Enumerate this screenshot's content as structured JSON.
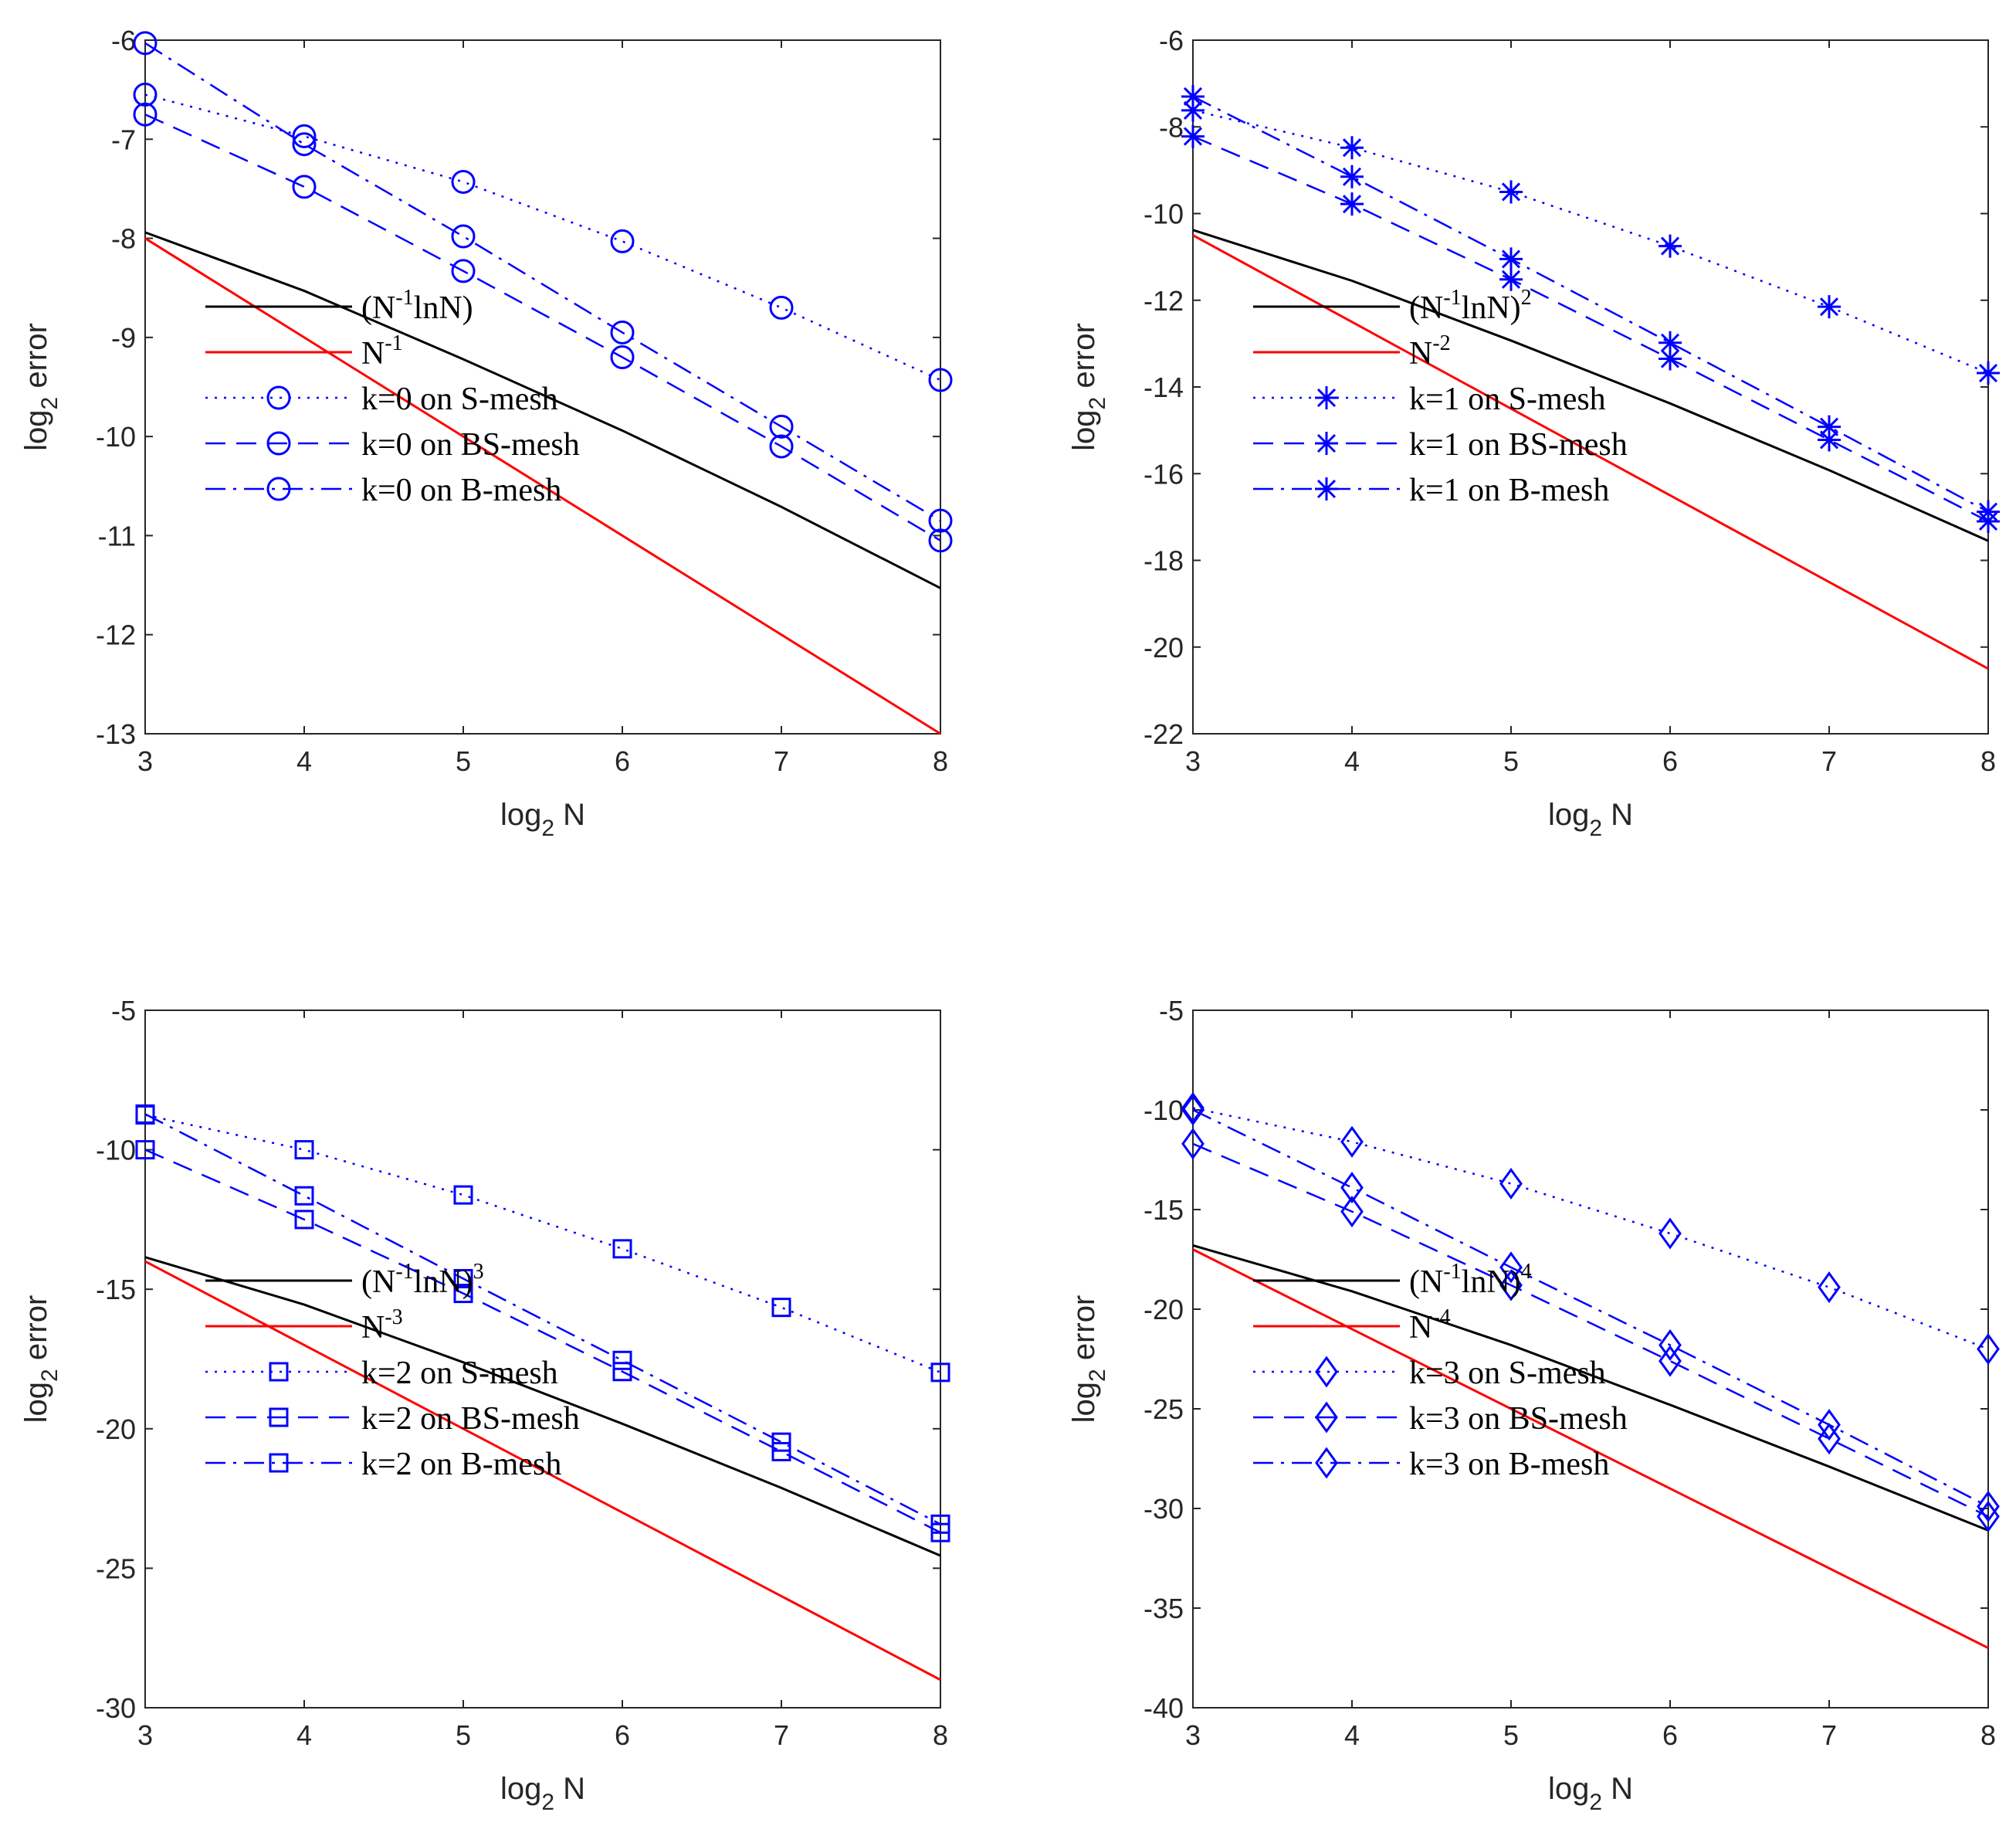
{
  "chart_data": [
    {
      "type": "line",
      "xlabel": "log2 N",
      "ylabel": "log2 error",
      "xlim": [
        3,
        8
      ],
      "ylim": [
        -13,
        -6
      ],
      "xticks": [
        3,
        4,
        5,
        6,
        7,
        8
      ],
      "yticks": [
        -6,
        -7,
        -8,
        -9,
        -10,
        -11,
        -12,
        -13
      ],
      "grid": false,
      "legend_position": "bottom-left",
      "x": [
        3,
        4,
        5,
        6,
        7,
        8
      ],
      "series": [
        {
          "name": "(N^-1 lnN)",
          "label_base": "(N",
          "label_exp": "-1",
          "label_mid": "lnN)",
          "label_pow": "",
          "color": "#000000",
          "style": "solid",
          "marker": "none",
          "values": [
            -7.94,
            -8.53,
            -9.22,
            -9.94,
            -10.71,
            -11.53
          ]
        },
        {
          "name": "N^-1",
          "label_base": "N",
          "label_exp": "-1",
          "label_mid": "",
          "label_pow": "",
          "color": "#ff0000",
          "style": "solid",
          "marker": "none",
          "values": [
            -8,
            -9,
            -10,
            -11,
            -12,
            -13
          ]
        },
        {
          "name": "k=0 on S-mesh",
          "label_base": "k=0 on S-mesh",
          "label_exp": "",
          "label_mid": "",
          "label_pow": "",
          "color": "#0000ff",
          "style": "dotted",
          "marker": "circle",
          "values": [
            -6.55,
            -6.97,
            -7.43,
            -8.03,
            -8.7,
            -9.43
          ]
        },
        {
          "name": "k=0 on BS-mesh",
          "label_base": "k=0 on BS-mesh",
          "label_exp": "",
          "label_mid": "",
          "label_pow": "",
          "color": "#0000ff",
          "style": "dashed",
          "marker": "circle",
          "values": [
            -6.75,
            -7.48,
            -8.33,
            -9.2,
            -10.1,
            -11.05
          ]
        },
        {
          "name": "k=0 on B-mesh",
          "label_base": "k=0 on B-mesh",
          "label_exp": "",
          "label_mid": "",
          "label_pow": "",
          "color": "#0000ff",
          "style": "dashdot",
          "marker": "circle",
          "values": [
            -6.03,
            -7.05,
            -7.98,
            -8.95,
            -9.9,
            -10.85
          ]
        }
      ]
    },
    {
      "type": "line",
      "xlabel": "log2 N",
      "ylabel": "log2 error",
      "xlim": [
        3,
        8
      ],
      "ylim": [
        -22,
        -6
      ],
      "xticks": [
        3,
        4,
        5,
        6,
        7,
        8
      ],
      "yticks": [
        -6,
        -8,
        -10,
        -12,
        -14,
        -16,
        -18,
        -20,
        -22
      ],
      "grid": false,
      "legend_position": "bottom-left",
      "x": [
        3,
        4,
        5,
        6,
        7,
        8
      ],
      "series": [
        {
          "name": "(N^-1 lnN)^2",
          "label_base": "(N",
          "label_exp": "-1",
          "label_mid": "lnN)",
          "label_pow": "2",
          "color": "#000000",
          "style": "solid",
          "marker": "none",
          "values": [
            -10.38,
            -11.55,
            -12.93,
            -14.38,
            -15.92,
            -17.55
          ]
        },
        {
          "name": "N^-2",
          "label_base": "N",
          "label_exp": "-2",
          "label_mid": "",
          "label_pow": "",
          "color": "#ff0000",
          "style": "solid",
          "marker": "none",
          "values": [
            -10.5,
            -12.5,
            -14.5,
            -16.5,
            -18.5,
            -20.5
          ]
        },
        {
          "name": "k=1 on S-mesh",
          "label_base": "k=1 on S-mesh",
          "label_exp": "",
          "label_mid": "",
          "label_pow": "",
          "color": "#0000ff",
          "style": "dotted",
          "marker": "asterisk",
          "values": [
            -7.62,
            -8.48,
            -9.5,
            -10.75,
            -12.15,
            -13.68
          ]
        },
        {
          "name": "k=1 on BS-mesh",
          "label_base": "k=1 on BS-mesh",
          "label_exp": "",
          "label_mid": "",
          "label_pow": "",
          "color": "#0000ff",
          "style": "dashed",
          "marker": "asterisk",
          "values": [
            -8.22,
            -9.78,
            -11.52,
            -13.35,
            -15.22,
            -17.1
          ]
        },
        {
          "name": "k=1 on B-mesh",
          "label_base": "k=1 on B-mesh",
          "label_exp": "",
          "label_mid": "",
          "label_pow": "",
          "color": "#0000ff",
          "style": "dashdot",
          "marker": "asterisk",
          "values": [
            -7.3,
            -9.15,
            -11.05,
            -12.98,
            -14.92,
            -16.88
          ]
        }
      ]
    },
    {
      "type": "line",
      "xlabel": "log2 N",
      "ylabel": "log2 error",
      "xlim": [
        3,
        8
      ],
      "ylim": [
        -30,
        -5
      ],
      "xticks": [
        3,
        4,
        5,
        6,
        7,
        8
      ],
      "yticks": [
        -5,
        -10,
        -15,
        -20,
        -25,
        -30
      ],
      "grid": false,
      "legend_position": "bottom-left",
      "x": [
        3,
        4,
        5,
        6,
        7,
        8
      ],
      "series": [
        {
          "name": "(N^-1 lnN)^3",
          "label_base": "(N",
          "label_exp": "-1",
          "label_mid": "lnN)",
          "label_pow": "3",
          "color": "#000000",
          "style": "solid",
          "marker": "none",
          "values": [
            -13.85,
            -15.55,
            -17.62,
            -19.82,
            -22.12,
            -24.55
          ]
        },
        {
          "name": "N^-3",
          "label_base": "N",
          "label_exp": "-3",
          "label_mid": "",
          "label_pow": "",
          "color": "#ff0000",
          "style": "solid",
          "marker": "none",
          "values": [
            -14,
            -17,
            -20,
            -23,
            -26,
            -29
          ]
        },
        {
          "name": "k=2 on S-mesh",
          "label_base": "k=2 on S-mesh",
          "label_exp": "",
          "label_mid": "",
          "label_pow": "",
          "color": "#0000ff",
          "style": "dotted",
          "marker": "square",
          "values": [
            -8.75,
            -10.0,
            -11.62,
            -13.55,
            -15.65,
            -17.98
          ]
        },
        {
          "name": "k=2 on BS-mesh",
          "label_base": "k=2 on BS-mesh",
          "label_exp": "",
          "label_mid": "",
          "label_pow": "",
          "color": "#0000ff",
          "style": "dashed",
          "marker": "square",
          "values": [
            -10.0,
            -12.5,
            -15.15,
            -17.95,
            -20.82,
            -23.72
          ]
        },
        {
          "name": "k=2 on B-mesh",
          "label_base": "k=2 on B-mesh",
          "label_exp": "",
          "label_mid": "",
          "label_pow": "",
          "color": "#0000ff",
          "style": "dashdot",
          "marker": "square",
          "values": [
            -8.72,
            -11.65,
            -14.62,
            -17.55,
            -20.48,
            -23.42
          ]
        }
      ]
    },
    {
      "type": "line",
      "xlabel": "log2 N",
      "ylabel": "log2 error",
      "xlim": [
        3,
        8
      ],
      "ylim": [
        -40,
        -5
      ],
      "xticks": [
        3,
        4,
        5,
        6,
        7,
        8
      ],
      "yticks": [
        -5,
        -10,
        -15,
        -20,
        -25,
        -30,
        -35,
        -40
      ],
      "grid": false,
      "legend_position": "bottom-left",
      "x": [
        3,
        4,
        5,
        6,
        7,
        8
      ],
      "series": [
        {
          "name": "(N^-1 lnN)^4",
          "label_base": "(N",
          "label_exp": "-1",
          "label_mid": "lnN)",
          "label_pow": "4",
          "color": "#000000",
          "style": "solid",
          "marker": "none",
          "values": [
            -16.8,
            -19.1,
            -21.8,
            -24.8,
            -27.9,
            -31.1
          ]
        },
        {
          "name": "N^-4",
          "label_base": "N",
          "label_exp": "-4",
          "label_mid": "",
          "label_pow": "",
          "color": "#ff0000",
          "style": "solid",
          "marker": "none",
          "values": [
            -17,
            -21,
            -25,
            -29,
            -33,
            -37
          ]
        },
        {
          "name": "k=3 on S-mesh",
          "label_base": "k=3 on S-mesh",
          "label_exp": "",
          "label_mid": "",
          "label_pow": "",
          "color": "#0000ff",
          "style": "dotted",
          "marker": "diamond",
          "values": [
            -9.9,
            -11.6,
            -13.7,
            -16.2,
            -18.9,
            -22.0
          ]
        },
        {
          "name": "k=3 on BS-mesh",
          "label_base": "k=3 on BS-mesh",
          "label_exp": "",
          "label_mid": "",
          "label_pow": "",
          "color": "#0000ff",
          "style": "dashed",
          "marker": "diamond",
          "values": [
            -11.7,
            -15.1,
            -18.8,
            -22.6,
            -26.5,
            -30.4
          ]
        },
        {
          "name": "k=3 on B-mesh",
          "label_base": "k=3 on B-mesh",
          "label_exp": "",
          "label_mid": "",
          "label_pow": "",
          "color": "#0000ff",
          "style": "dashdot",
          "marker": "diamond",
          "values": [
            -10.0,
            -13.9,
            -17.9,
            -21.8,
            -25.8,
            -29.9
          ]
        }
      ]
    }
  ]
}
